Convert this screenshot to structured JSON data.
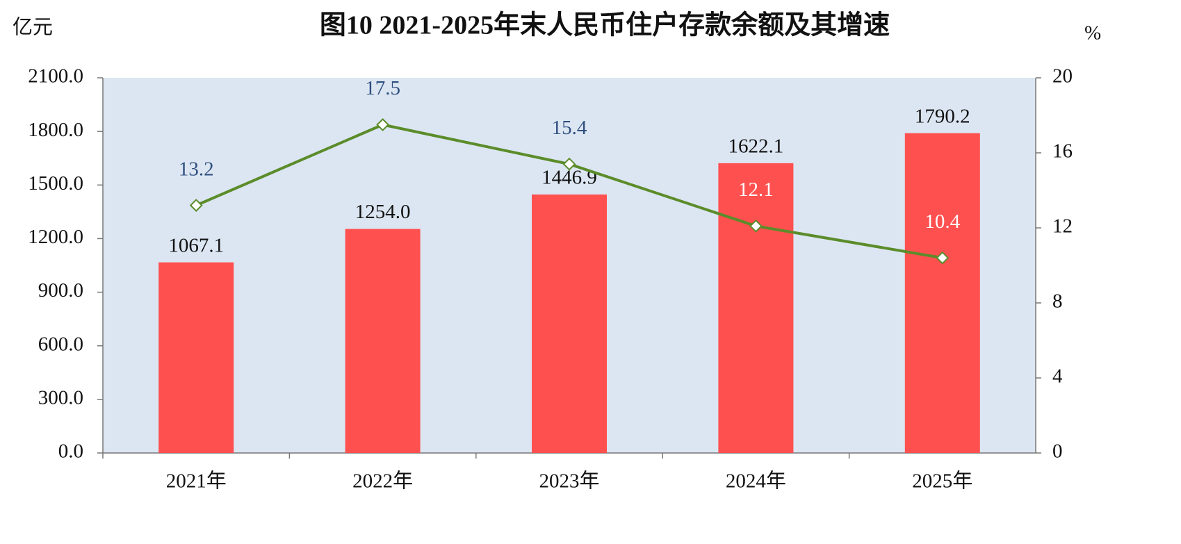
{
  "chart_data": {
    "type": "bar-line",
    "title": "图10  2021-2025年末人民币住户存款余额及其增速",
    "y_label": "亿元",
    "y2_label": "%",
    "categories": [
      "2021年",
      "2022年",
      "2023年",
      "2024年",
      "2025年"
    ],
    "series": [
      {
        "type": "bar",
        "color": "#ff5050",
        "values": [
          1067.1,
          1254.0,
          1446.9,
          1622.1,
          1790.2
        ],
        "value_labels": [
          "1067.1",
          "1254.0",
          "1446.9",
          "1622.1",
          "1790.2"
        ]
      },
      {
        "type": "line",
        "color": "#5b8c2a",
        "axis": "y2",
        "values": [
          13.2,
          17.5,
          15.4,
          12.1,
          10.4
        ]
      }
    ],
    "ylim": [
      0,
      2100
    ],
    "yticks": [
      {
        "value": 0,
        "label": "0.0"
      },
      {
        "value": 300,
        "label": "300.0"
      },
      {
        "value": 600,
        "label": "600.0"
      },
      {
        "value": 900,
        "label": "900.0"
      },
      {
        "value": 1200,
        "label": "1200.0"
      },
      {
        "value": 1500,
        "label": "1500.0"
      },
      {
        "value": 1800,
        "label": "1800.0"
      },
      {
        "value": 2100,
        "label": "2100.0"
      }
    ],
    "y2lim": [
      0,
      20
    ],
    "y2ticks": [
      0,
      4,
      8,
      12,
      16,
      20
    ]
  }
}
